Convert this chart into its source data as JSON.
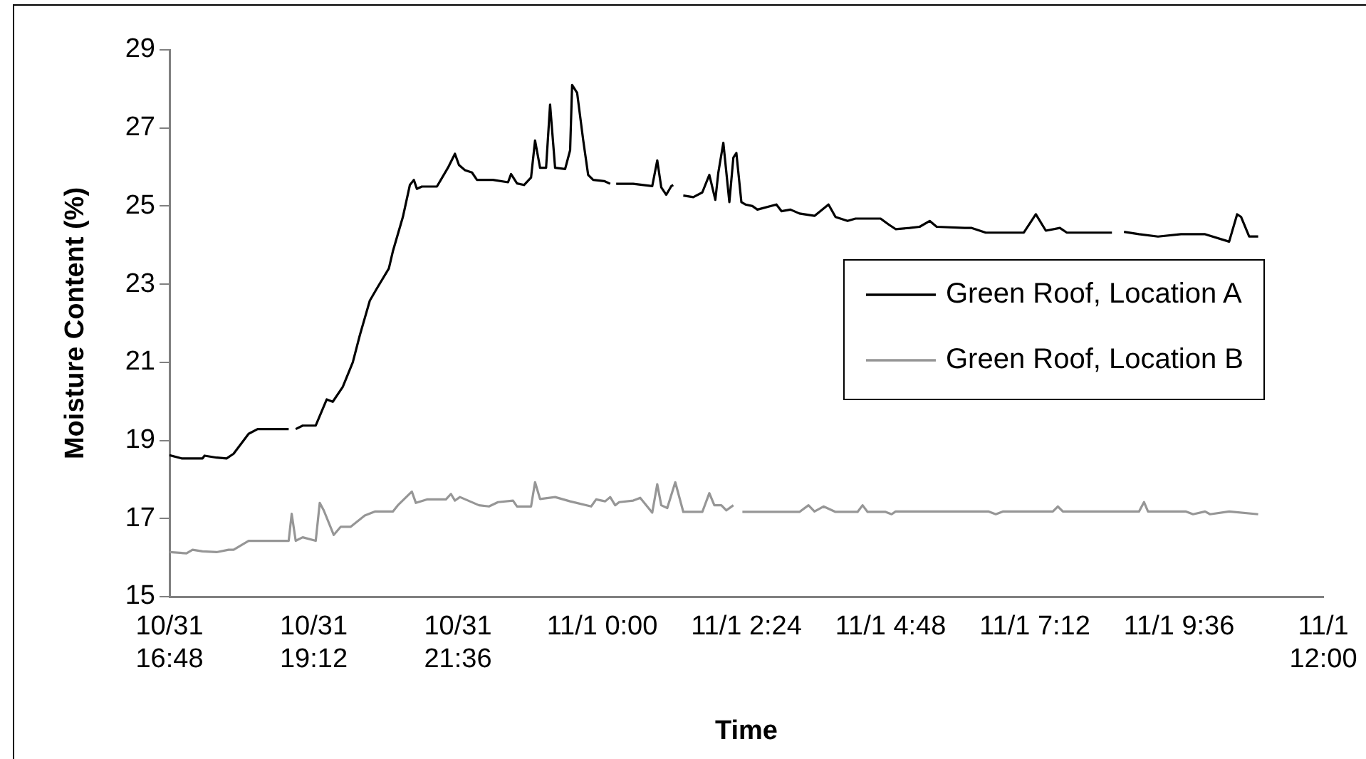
{
  "chart_data": {
    "type": "line",
    "xlabel": "Time",
    "ylabel": "Moisture Content (%)",
    "marker": "none",
    "legend": "right",
    "xlim": [
      "--10-31T16:48",
      "--11-01T12:00"
    ],
    "xticks": [
      {
        "value": "--10-31T16:48",
        "label": "10/31 16:48"
      },
      {
        "value": "--10-31T19:12",
        "label": "10/31 19:12"
      },
      {
        "value": "--10-31T21:36",
        "label": "10/31 21:36"
      },
      {
        "value": "--11-01T00:00",
        "label": "11/1 0:00"
      },
      {
        "value": "--11-01T02:24",
        "label": "11/1 2:24"
      },
      {
        "value": "--11-01T04:48",
        "label": "11/1 4:48"
      },
      {
        "value": "--11-01T07:12",
        "label": "11/1 7:12"
      },
      {
        "value": "--11-01T09:36",
        "label": "11/1 9:36"
      },
      {
        "value": "--11-01T12:00",
        "label": "11/1 12:00"
      }
    ],
    "ylim": [
      15,
      29
    ],
    "yticks": [
      15,
      17,
      19,
      21,
      23,
      25,
      27,
      29
    ],
    "series": [
      {
        "name": "Green Roof, Location A",
        "color": "#000000",
        "x": [
          "--10-31T16:48",
          "--10-31T17:00",
          "--10-31T17:21",
          "--10-31T17:23",
          "--10-31T17:35",
          "--10-31T17:45",
          "--10-31T17:52",
          "--10-31T18:07",
          "--10-31T18:16",
          "--10-31T18:47",
          "--10-31T18:50",
          "--10-31T18:54",
          "--10-31T19:01",
          "--10-31T19:14",
          "--10-31T19:25",
          "--10-31T19:31",
          "--10-31T19:41",
          "--10-31T19:51",
          "--10-31T19:58",
          "--10-31T20:08",
          "--10-31T20:15",
          "--10-31T20:27",
          "--10-31T20:31",
          "--10-31T20:41",
          "--10-31T20:48",
          "--10-31T20:52",
          "--10-31T20:55",
          "--10-31T21:00",
          "--10-31T21:15",
          "--10-31T21:26",
          "--10-31T21:33",
          "--10-31T21:37",
          "--10-31T21:43",
          "--10-31T21:50",
          "--10-31T21:55",
          "--10-31T22:11",
          "--10-31T22:26",
          "--10-31T22:29",
          "--10-31T22:35",
          "--10-31T22:42",
          "--10-31T22:49",
          "--10-31T22:53",
          "--10-31T22:58",
          "--10-31T23:04",
          "--10-31T23:08",
          "--10-31T23:13",
          "--10-31T23:23",
          "--10-31T23:28",
          "--10-31T23:30",
          "--10-31T23:35",
          "--10-31T23:41",
          "--10-31T23:46",
          "--10-31T23:51",
          "--11-01T00:02",
          "--11-01T00:08",
          "--11-01T00:11",
          "--11-01T00:14",
          "--11-01T00:31",
          "--11-01T00:50",
          "--11-01T00:55",
          "--11-01T00:59",
          "--11-01T01:04",
          "--11-01T01:09",
          "--11-01T01:11",
          "--11-01T01:16",
          "--11-01T01:21",
          "--11-01T01:31",
          "--11-01T01:40",
          "--11-01T01:47",
          "--11-01T01:53",
          "--11-01T01:56",
          "--11-01T02:01",
          "--11-01T02:04",
          "--11-01T02:07",
          "--11-01T02:11",
          "--11-01T02:14",
          "--11-01T02:19",
          "--11-01T02:23",
          "--11-01T02:30",
          "--11-01T02:35",
          "--11-01T02:54",
          "--11-01T02:59",
          "--11-01T03:08",
          "--11-01T03:17",
          "--11-01T03:32",
          "--11-01T03:46",
          "--11-01T03:53",
          "--11-01T04:05",
          "--11-01T04:13",
          "--11-01T04:38",
          "--11-01T04:46",
          "--11-01T04:53",
          "--11-01T05:07",
          "--11-01T05:17",
          "--11-01T05:27",
          "--11-01T05:34",
          "--11-01T06:02",
          "--11-01T06:09",
          "--11-01T06:23",
          "--11-01T07:01",
          "--11-01T07:13",
          "--11-01T07:23",
          "--11-01T07:37",
          "--11-01T07:44",
          "--11-01T08:29",
          "--11-01T08:35",
          "--11-01T08:41",
          "--11-01T08:56",
          "--11-01T09:15",
          "--11-01T09:38",
          "--11-01T10:02",
          "--11-01T10:26",
          "--11-01T10:34",
          "--11-01T10:38",
          "--11-01T10:46",
          "--11-01T10:55"
        ],
        "values": [
          18.62,
          18.54,
          18.54,
          18.61,
          18.56,
          18.54,
          18.66,
          19.17,
          19.29,
          19.29,
          null,
          19.29,
          19.38,
          19.38,
          20.05,
          19.99,
          20.37,
          21.0,
          21.69,
          22.58,
          22.89,
          23.4,
          23.84,
          24.72,
          25.54,
          25.67,
          25.44,
          25.5,
          25.5,
          25.98,
          26.34,
          26.05,
          25.92,
          25.86,
          25.67,
          25.67,
          25.61,
          25.82,
          25.58,
          25.54,
          25.73,
          26.68,
          25.98,
          25.98,
          27.6,
          25.98,
          25.95,
          26.43,
          28.1,
          27.9,
          26.7,
          25.8,
          25.67,
          25.64,
          25.57,
          null,
          25.57,
          25.57,
          25.51,
          26.17,
          25.48,
          25.29,
          25.51,
          25.54,
          null,
          25.27,
          25.23,
          25.35,
          25.8,
          25.16,
          25.86,
          26.62,
          25.86,
          25.1,
          26.24,
          26.36,
          25.1,
          25.04,
          25.0,
          24.91,
          25.04,
          24.87,
          24.91,
          24.81,
          24.75,
          25.04,
          24.72,
          24.62,
          24.68,
          24.68,
          24.53,
          24.41,
          24.44,
          24.47,
          24.62,
          24.47,
          24.44,
          24.44,
          24.32,
          24.32,
          24.79,
          24.37,
          24.44,
          24.32,
          24.32,
          null,
          24.34,
          24.28,
          24.22,
          24.28,
          24.28,
          24.09,
          24.79,
          24.72,
          24.22,
          24.22
        ]
      },
      {
        "name": "Green Roof, Location B",
        "color": "#969696",
        "x": [
          "--10-31T16:48",
          "--10-31T17:05",
          "--10-31T17:11",
          "--10-31T17:21",
          "--10-31T17:35",
          "--10-31T17:47",
          "--10-31T17:52",
          "--10-31T18:07",
          "--10-31T18:47",
          "--10-31T18:50",
          "--10-31T18:54",
          "--10-31T19:01",
          "--10-31T19:14",
          "--10-31T19:18",
          "--10-31T19:22",
          "--10-31T19:32",
          "--10-31T19:39",
          "--10-31T19:49",
          "--10-31T20:03",
          "--10-31T20:13",
          "--10-31T20:31",
          "--10-31T20:36",
          "--10-31T20:50",
          "--10-31T20:54",
          "--10-31T21:05",
          "--10-31T21:24",
          "--10-31T21:29",
          "--10-31T21:33",
          "--10-31T21:38",
          "--10-31T21:57",
          "--10-31T22:07",
          "--10-31T22:16",
          "--10-31T22:31",
          "--10-31T22:35",
          "--10-31T22:49",
          "--10-31T22:53",
          "--10-31T22:58",
          "--10-31T23:13",
          "--10-31T23:28",
          "--10-31T23:49",
          "--10-31T23:54",
          "--11-01T00:03",
          "--11-01T00:08",
          "--11-01T00:13",
          "--11-01T00:17",
          "--11-01T00:31",
          "--11-01T00:38",
          "--11-01T00:50",
          "--11-01T00:55",
          "--11-01T00:59",
          "--11-01T01:05",
          "--11-01T01:13",
          "--11-01T01:21",
          "--11-01T01:40",
          "--11-01T01:47",
          "--11-01T01:52",
          "--11-01T01:59",
          "--11-01T02:04",
          "--11-01T02:11",
          "--11-01T02:16",
          "--11-01T02:20",
          "--11-01T03:17",
          "--11-01T03:26",
          "--11-01T03:32",
          "--11-01T03:41",
          "--11-01T03:53",
          "--11-01T04:15",
          "--11-01T04:20",
          "--11-01T04:25",
          "--11-01T04:43",
          "--11-01T04:49",
          "--11-01T04:53",
          "--11-01T06:26",
          "--11-01T06:33",
          "--11-01T06:40",
          "--11-01T07:30",
          "--11-01T07:35",
          "--11-01T07:40",
          "--11-01T08:56",
          "--11-01T09:01",
          "--11-01T09:05",
          "--11-01T09:43",
          "--11-01T09:50",
          "--11-01T10:02",
          "--11-01T10:07",
          "--11-01T10:26",
          "--11-01T10:55"
        ],
        "values": [
          16.14,
          16.11,
          16.2,
          16.16,
          16.14,
          16.2,
          16.2,
          16.43,
          16.43,
          17.12,
          16.43,
          16.52,
          16.43,
          17.4,
          17.21,
          16.58,
          16.79,
          16.79,
          17.08,
          17.18,
          17.18,
          17.34,
          17.69,
          17.4,
          17.49,
          17.49,
          17.63,
          17.46,
          17.55,
          17.34,
          17.31,
          17.42,
          17.46,
          17.31,
          17.31,
          17.93,
          17.5,
          17.55,
          17.44,
          17.31,
          17.49,
          17.44,
          17.55,
          17.34,
          17.42,
          17.46,
          17.53,
          17.15,
          17.88,
          17.34,
          17.27,
          17.93,
          17.17,
          17.17,
          17.65,
          17.34,
          17.34,
          17.21,
          17.34,
          null,
          17.17,
          17.17,
          17.34,
          17.18,
          17.31,
          17.17,
          17.17,
          17.34,
          17.17,
          17.17,
          17.11,
          17.18,
          17.18,
          17.11,
          17.18,
          17.18,
          17.31,
          17.18,
          17.18,
          17.42,
          17.18,
          17.18,
          17.11,
          17.18,
          17.11,
          17.18,
          17.11
        ]
      }
    ]
  }
}
